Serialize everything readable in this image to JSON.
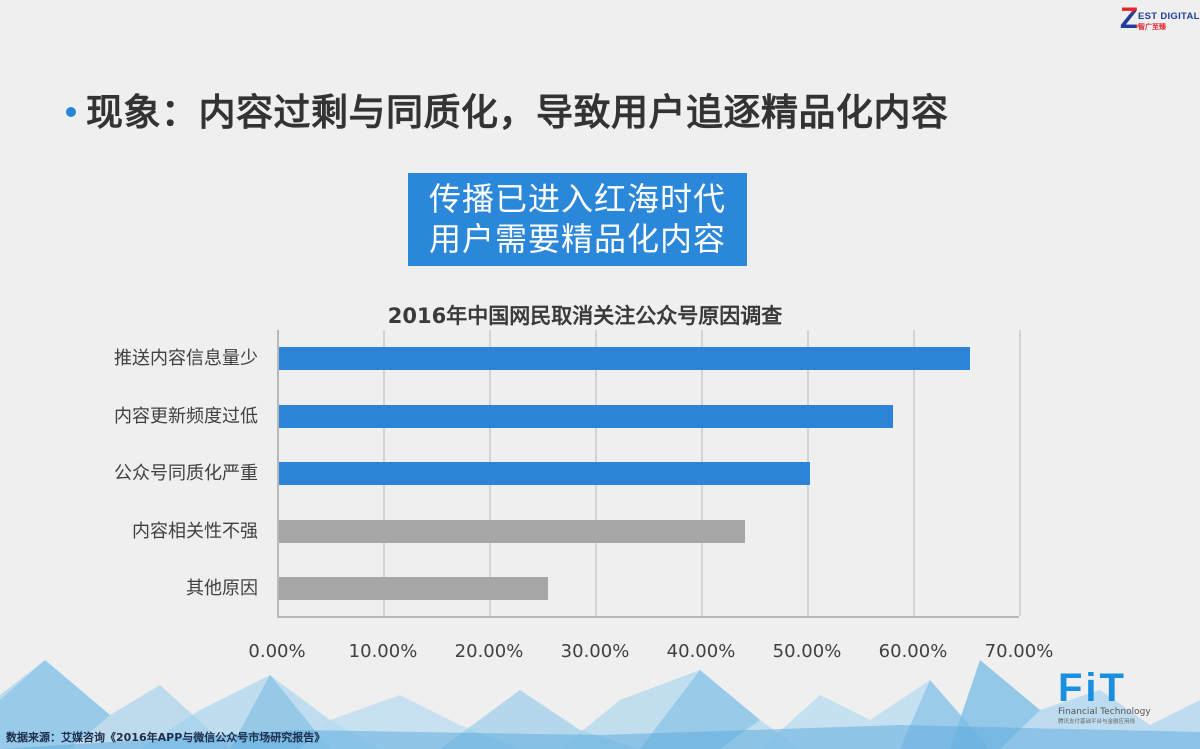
{
  "brand": {
    "zest_logo_text": "EST DIGITAL",
    "zest_logo_letter": "Z",
    "zest_logo_sub": "智广至臻",
    "fit_logo_text": "FiT",
    "fit_logo_en": "Financial Technology",
    "fit_logo_cn": "腾讯支付基础平台与金融应用线"
  },
  "slide": {
    "headline": "现象：内容过剩与同质化，导致用户追逐精品化内容",
    "callout": {
      "line1": "传播已进入红海时代",
      "line2": "用户需要精品化内容"
    },
    "source": "数据来源：艾媒咨询《2016年APP与微信公众号市场研究报告》"
  },
  "colors": {
    "accent_blue": "#2b84d8",
    "bar_gray": "#a6a6a6",
    "background": "#efefef"
  },
  "chart_data": {
    "type": "bar",
    "orientation": "horizontal",
    "title": "2016年中国网民取消关注公众号原因调查",
    "categories": [
      "推送内容信息量少",
      "内容更新频度过低",
      "公众号同质化严重",
      "内容相关性不强",
      "其他原因"
    ],
    "values": [
      65.2,
      57.9,
      50.1,
      44.0,
      25.4
    ],
    "unit": "%",
    "bar_colors": [
      "#2b84d8",
      "#2b84d8",
      "#2b84d8",
      "#a6a6a6",
      "#a6a6a6"
    ],
    "xlabel": "",
    "ylabel": "",
    "xlim": [
      0,
      70
    ],
    "x_ticks": [
      "0.00%",
      "10.00%",
      "20.00%",
      "30.00%",
      "40.00%",
      "50.00%",
      "60.00%",
      "70.00%"
    ],
    "grid": true,
    "legend": "none"
  }
}
